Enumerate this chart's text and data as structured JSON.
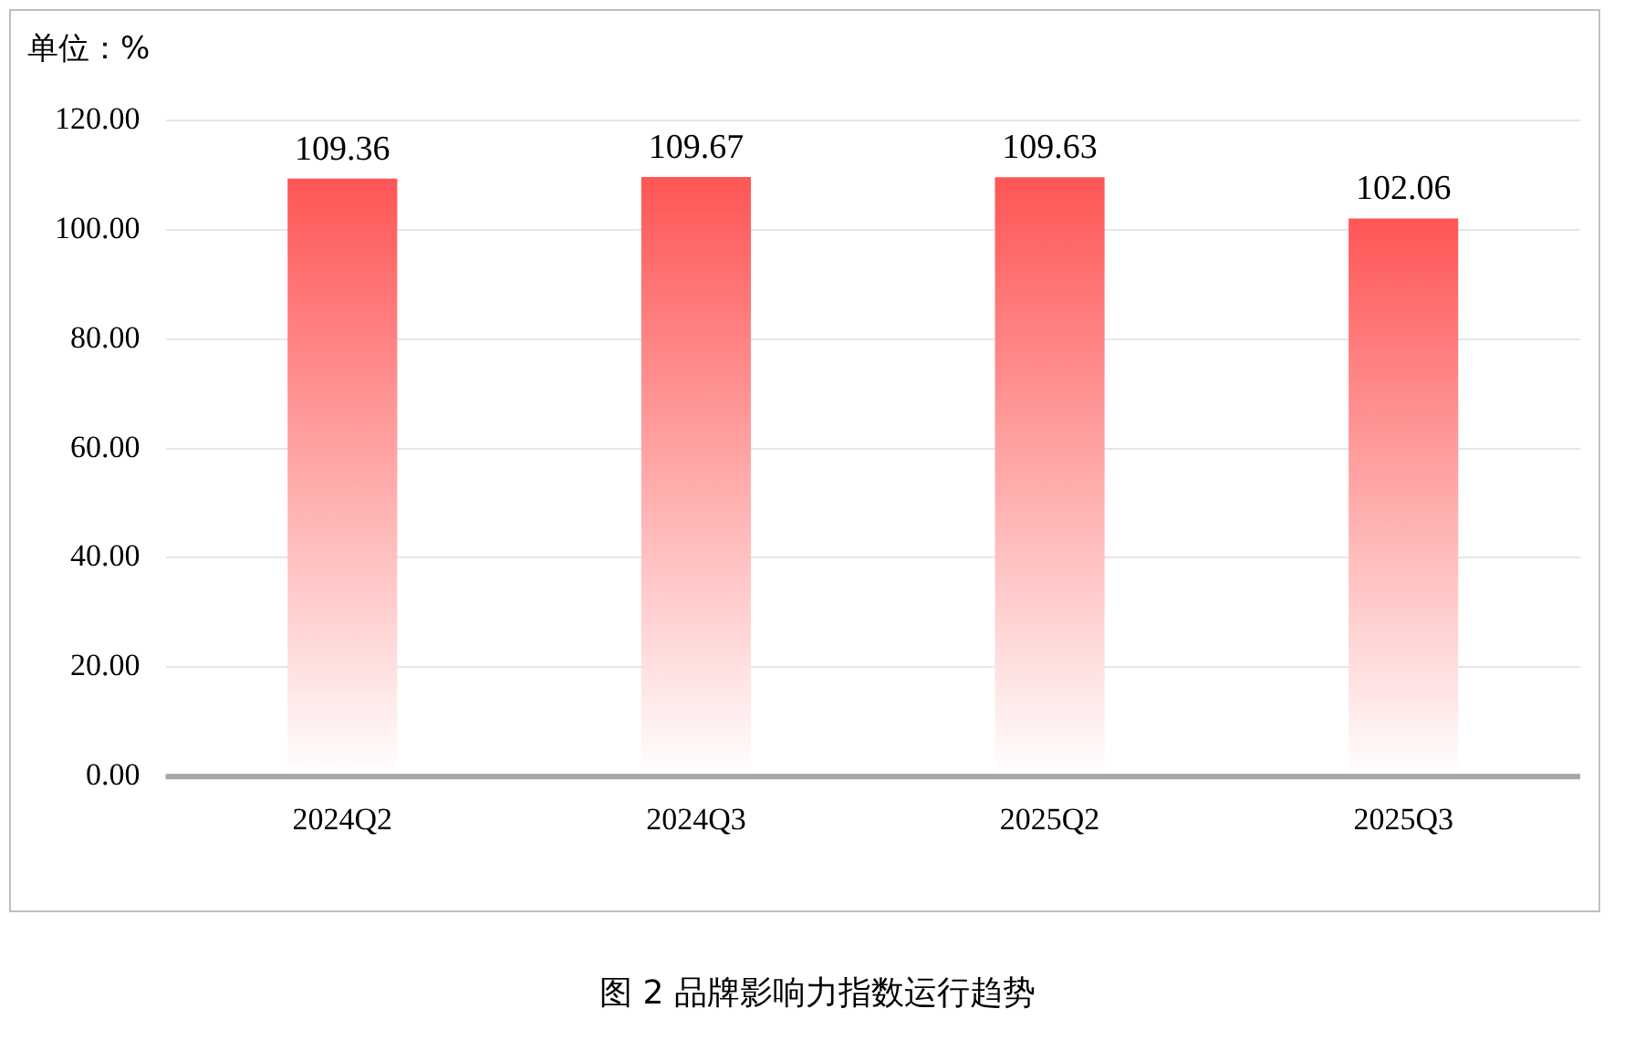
{
  "chart_data": {
    "type": "bar",
    "title": "图 2  品牌影响力指数运行趋势",
    "ylabel": "单位：%",
    "categories": [
      "2024Q2",
      "2024Q3",
      "2025Q2",
      "2025Q3"
    ],
    "values": [
      109.36,
      109.67,
      109.63,
      102.06
    ],
    "color": "#ff5555",
    "ylim": [
      0,
      120
    ],
    "yticks": [
      {
        "value": 0,
        "label": "0.00"
      },
      {
        "value": 20,
        "label": "20.00"
      },
      {
        "value": 40,
        "label": "40.00"
      },
      {
        "value": 60,
        "label": "60.00"
      },
      {
        "value": 80,
        "label": "80.00"
      },
      {
        "value": 100,
        "label": "100.00"
      },
      {
        "value": 120,
        "label": "120.00"
      }
    ],
    "grid": "y",
    "data_labels": true,
    "legend": false
  }
}
